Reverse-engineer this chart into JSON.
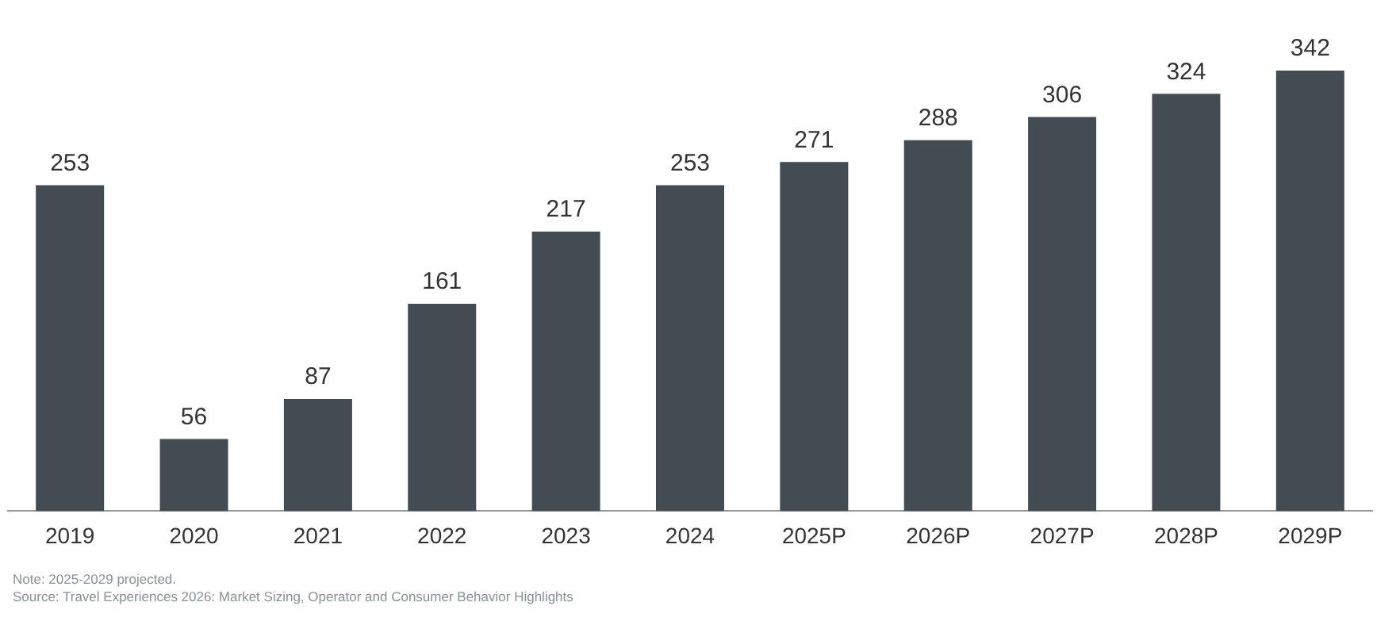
{
  "chart_data": {
    "type": "bar",
    "categories": [
      "2019",
      "2020",
      "2021",
      "2022",
      "2023",
      "2024",
      "2025P",
      "2026P",
      "2027P",
      "2028P",
      "2029P"
    ],
    "values": [
      253,
      56,
      87,
      161,
      217,
      253,
      271,
      288,
      306,
      324,
      342
    ],
    "color": "#434c53",
    "data_labels": true,
    "grid": false,
    "legend": false,
    "annotations": [
      "Note: 2025-2029 projected.",
      "Source: Travel Experiences 2026: Market Sizing, Operator and Consumer Behavior Highlights"
    ]
  }
}
